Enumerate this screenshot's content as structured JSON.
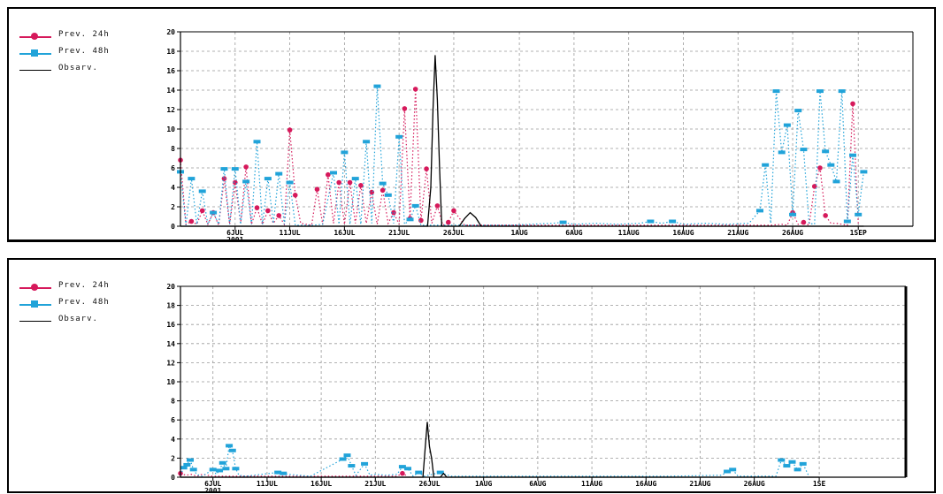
{
  "chart_data": [
    {
      "type": "line",
      "title": "",
      "xlabel": "",
      "ylabel": "",
      "ylim": [
        0,
        20
      ],
      "yticks": [
        0,
        2,
        4,
        6,
        8,
        10,
        12,
        14,
        16,
        18,
        20
      ],
      "xlim": [
        0,
        67
      ],
      "xticks": [
        {
          "x": 5,
          "label": "6JUL",
          "sublabel": "2001"
        },
        {
          "x": 10,
          "label": "11JUL"
        },
        {
          "x": 15,
          "label": "16JUL"
        },
        {
          "x": 20,
          "label": "21JUL"
        },
        {
          "x": 25,
          "label": "26JUL"
        },
        {
          "x": 31,
          "label": "1AUG"
        },
        {
          "x": 36,
          "label": "6AUG"
        },
        {
          "x": 41,
          "label": "11AUG"
        },
        {
          "x": 46,
          "label": "16AUG"
        },
        {
          "x": 51,
          "label": "21AUG"
        },
        {
          "x": 56,
          "label": "26AUG"
        },
        {
          "x": 62,
          "label": "1SEP"
        }
      ],
      "series": [
        {
          "name": "Prev. 24h",
          "color": "#d6195b",
          "style": "dotted-marker",
          "points": [
            [
              0,
              6.8
            ],
            [
              0.5,
              0.2
            ],
            [
              1,
              0.5
            ],
            [
              1.5,
              0.2
            ],
            [
              2,
              1.6
            ],
            [
              2.5,
              0.2
            ],
            [
              3,
              1.4
            ],
            [
              3.5,
              0.1
            ],
            [
              4,
              4.9
            ],
            [
              4.5,
              0.2
            ],
            [
              5,
              4.5
            ],
            [
              5.5,
              0.3
            ],
            [
              6,
              6.1
            ],
            [
              6.5,
              0.2
            ],
            [
              7,
              1.9
            ],
            [
              7.5,
              0.2
            ],
            [
              8,
              1.6
            ],
            [
              8.5,
              0.3
            ],
            [
              9,
              1.1
            ],
            [
              9.5,
              0.2
            ],
            [
              10,
              9.9
            ],
            [
              10.5,
              3.2
            ],
            [
              11,
              0.3
            ],
            [
              12,
              0.1
            ],
            [
              12.5,
              3.8
            ],
            [
              13,
              0.2
            ],
            [
              13.5,
              5.3
            ],
            [
              14,
              0.3
            ],
            [
              14.5,
              4.5
            ],
            [
              15,
              0.2
            ],
            [
              15.5,
              4.5
            ],
            [
              16,
              0.3
            ],
            [
              16.5,
              4.2
            ],
            [
              17,
              0.3
            ],
            [
              17.5,
              3.5
            ],
            [
              18,
              0.2
            ],
            [
              18.5,
              3.7
            ],
            [
              19,
              0.3
            ],
            [
              19.5,
              1.4
            ],
            [
              20,
              0.2
            ],
            [
              20.5,
              12.1
            ],
            [
              21,
              0.8
            ],
            [
              21.5,
              14.1
            ],
            [
              22,
              0.6
            ],
            [
              22.5,
              5.9
            ],
            [
              23,
              0.3
            ],
            [
              23.5,
              2.1
            ],
            [
              24,
              0.1
            ],
            [
              24.5,
              0.4
            ],
            [
              25,
              1.6
            ],
            [
              26,
              0.1
            ],
            [
              30,
              0.1
            ],
            [
              40,
              0.1
            ],
            [
              50,
              0.1
            ],
            [
              54,
              0.1
            ],
            [
              55,
              0.2
            ],
            [
              55.5,
              0.1
            ],
            [
              56,
              1.4
            ],
            [
              56.5,
              0.2
            ],
            [
              57,
              0.4
            ],
            [
              57.5,
              0.1
            ],
            [
              58,
              4.1
            ],
            [
              58.5,
              6.0
            ],
            [
              59,
              1.1
            ],
            [
              59.5,
              0.3
            ],
            [
              60,
              0.3
            ],
            [
              60.5,
              0.2
            ],
            [
              61,
              0.1
            ],
            [
              61.5,
              12.6
            ],
            [
              62,
              0.3
            ]
          ]
        },
        {
          "name": "Prev. 48h",
          "color": "#21a3d9",
          "style": "dotted-marker",
          "points": [
            [
              0,
              5.6
            ],
            [
              0.5,
              0.1
            ],
            [
              1,
              4.9
            ],
            [
              1.5,
              0.2
            ],
            [
              2,
              3.6
            ],
            [
              2.5,
              0.2
            ],
            [
              3,
              1.4
            ],
            [
              3.5,
              0.2
            ],
            [
              4,
              5.9
            ],
            [
              4.5,
              0.2
            ],
            [
              5,
              5.9
            ],
            [
              5.5,
              0.2
            ],
            [
              6,
              4.6
            ],
            [
              6.5,
              0.2
            ],
            [
              7,
              8.7
            ],
            [
              7.5,
              0.2
            ],
            [
              8,
              4.9
            ],
            [
              8.5,
              0.3
            ],
            [
              9,
              5.4
            ],
            [
              9.5,
              0.2
            ],
            [
              10,
              4.5
            ],
            [
              10.5,
              0.1
            ],
            [
              12,
              0.1
            ],
            [
              13,
              0.2
            ],
            [
              14,
              5.5
            ],
            [
              14.5,
              0.2
            ],
            [
              15,
              7.6
            ],
            [
              15.5,
              0.2
            ],
            [
              16,
              4.9
            ],
            [
              16.5,
              0.2
            ],
            [
              17,
              8.7
            ],
            [
              17.5,
              0.3
            ],
            [
              18,
              14.4
            ],
            [
              18.5,
              4.4
            ],
            [
              19,
              3.2
            ],
            [
              19.5,
              0.3
            ],
            [
              20,
              9.2
            ],
            [
              20.5,
              0.2
            ],
            [
              21,
              0.7
            ],
            [
              21.5,
              2.1
            ],
            [
              22,
              0.1
            ],
            [
              30,
              0.1
            ],
            [
              34,
              0.3
            ],
            [
              35,
              0.4
            ],
            [
              36,
              0.2
            ],
            [
              38,
              0.3
            ],
            [
              40,
              0.2
            ],
            [
              42,
              0.3
            ],
            [
              43,
              0.5
            ],
            [
              44,
              0.3
            ],
            [
              45,
              0.5
            ],
            [
              46,
              0.2
            ],
            [
              48,
              0.3
            ],
            [
              50,
              0.2
            ],
            [
              52,
              0.3
            ],
            [
              53,
              1.6
            ],
            [
              53.5,
              6.3
            ],
            [
              54,
              0.3
            ],
            [
              54.5,
              13.9
            ],
            [
              55,
              7.6
            ],
            [
              55.5,
              10.4
            ],
            [
              56,
              1.2
            ],
            [
              56.5,
              11.9
            ],
            [
              57,
              7.9
            ],
            [
              57.5,
              0.3
            ],
            [
              58,
              0.2
            ],
            [
              58.5,
              13.9
            ],
            [
              59,
              7.7
            ],
            [
              59.5,
              6.3
            ],
            [
              60,
              4.6
            ],
            [
              60.5,
              13.9
            ],
            [
              61,
              0.5
            ],
            [
              61.5,
              7.3
            ],
            [
              62,
              1.2
            ],
            [
              62.5,
              5.6
            ]
          ]
        },
        {
          "name": "Obsarv.",
          "color": "#000000",
          "style": "solid",
          "points": [
            [
              0,
              0
            ],
            [
              22.6,
              0
            ],
            [
              22.9,
              4
            ],
            [
              23.1,
              12
            ],
            [
              23.3,
              17.6
            ],
            [
              23.5,
              13
            ],
            [
              23.7,
              6
            ],
            [
              23.9,
              0
            ],
            [
              25.5,
              0
            ],
            [
              26,
              0.8
            ],
            [
              26.5,
              1.4
            ],
            [
              27,
              0.9
            ],
            [
              27.5,
              0
            ],
            [
              62.5,
              0
            ]
          ]
        }
      ]
    },
    {
      "type": "line",
      "title": "",
      "xlabel": "",
      "ylabel": "",
      "ylim": [
        0,
        20
      ],
      "yticks": [
        0,
        2,
        4,
        6,
        8,
        10,
        12,
        14,
        16,
        18,
        20
      ],
      "xlim": [
        0,
        67
      ],
      "xticks": [
        {
          "x": 3,
          "label": "6JUL",
          "sublabel": "2001"
        },
        {
          "x": 8,
          "label": "11JUL"
        },
        {
          "x": 13,
          "label": "16JUL"
        },
        {
          "x": 18,
          "label": "21JUL"
        },
        {
          "x": 23,
          "label": "26JUL"
        },
        {
          "x": 28,
          "label": "1AUG"
        },
        {
          "x": 33,
          "label": "6AUG"
        },
        {
          "x": 38,
          "label": "11AUG"
        },
        {
          "x": 43,
          "label": "16AUG"
        },
        {
          "x": 48,
          "label": "21AUG"
        },
        {
          "x": 53,
          "label": "26AUG"
        },
        {
          "x": 59,
          "label": "1SE"
        }
      ],
      "series": [
        {
          "name": "Prev. 24h",
          "color": "#d6195b",
          "style": "dotted-marker",
          "points": [
            [
              0,
              0.4
            ],
            [
              0.5,
              0.2
            ],
            [
              1,
              0.3
            ],
            [
              1.5,
              0.1
            ],
            [
              2,
              0.3
            ],
            [
              2.5,
              0.2
            ],
            [
              3,
              0.1
            ],
            [
              20,
              0.1
            ],
            [
              20.5,
              0.4
            ],
            [
              21,
              0.1
            ]
          ]
        },
        {
          "name": "Prev. 48h",
          "color": "#21a3d9",
          "style": "dotted-marker",
          "points": [
            [
              0,
              0.2
            ],
            [
              0.3,
              1.0
            ],
            [
              0.6,
              1.3
            ],
            [
              0.9,
              1.8
            ],
            [
              1.2,
              0.8
            ],
            [
              1.5,
              0.3
            ],
            [
              2,
              0.1
            ],
            [
              3,
              0.8
            ],
            [
              3.3,
              0.3
            ],
            [
              3.6,
              0.7
            ],
            [
              3.9,
              1.5
            ],
            [
              4.2,
              0.9
            ],
            [
              4.5,
              3.3
            ],
            [
              4.8,
              2.8
            ],
            [
              5.1,
              0.9
            ],
            [
              5.4,
              0.2
            ],
            [
              6,
              0.1
            ],
            [
              9,
              0.5
            ],
            [
              9.5,
              0.4
            ],
            [
              10,
              0.3
            ],
            [
              12,
              0.1
            ],
            [
              15,
              1.9
            ],
            [
              15.4,
              2.3
            ],
            [
              15.8,
              1.2
            ],
            [
              16.2,
              0.2
            ],
            [
              17,
              1.4
            ],
            [
              17.5,
              0.2
            ],
            [
              18,
              0.3
            ],
            [
              19,
              0.2
            ],
            [
              20,
              0.3
            ],
            [
              20.5,
              1.1
            ],
            [
              21,
              0.9
            ],
            [
              21.5,
              0.1
            ],
            [
              22,
              0.5
            ],
            [
              22.5,
              0.1
            ],
            [
              24,
              0.5
            ],
            [
              24.5,
              0.3
            ],
            [
              25,
              0.1
            ],
            [
              30,
              0.1
            ],
            [
              45,
              0.1
            ],
            [
              50,
              0.2
            ],
            [
              50.5,
              0.6
            ],
            [
              51,
              0.8
            ],
            [
              51.5,
              0.1
            ],
            [
              55,
              0.1
            ],
            [
              55.5,
              1.8
            ],
            [
              56,
              1.2
            ],
            [
              56.5,
              1.6
            ],
            [
              57,
              0.8
            ],
            [
              57.5,
              1.4
            ],
            [
              58,
              0.2
            ]
          ]
        },
        {
          "name": "Obsarv.",
          "color": "#000000",
          "style": "solid",
          "points": [
            [
              0,
              0
            ],
            [
              22.4,
              0
            ],
            [
              22.6,
              3
            ],
            [
              22.8,
              5.8
            ],
            [
              23.0,
              3.2
            ],
            [
              23.2,
              2.0
            ],
            [
              23.4,
              0
            ],
            [
              24.0,
              0
            ],
            [
              24.3,
              0.4
            ],
            [
              24.6,
              0
            ],
            [
              59,
              0
            ]
          ]
        }
      ]
    }
  ]
}
